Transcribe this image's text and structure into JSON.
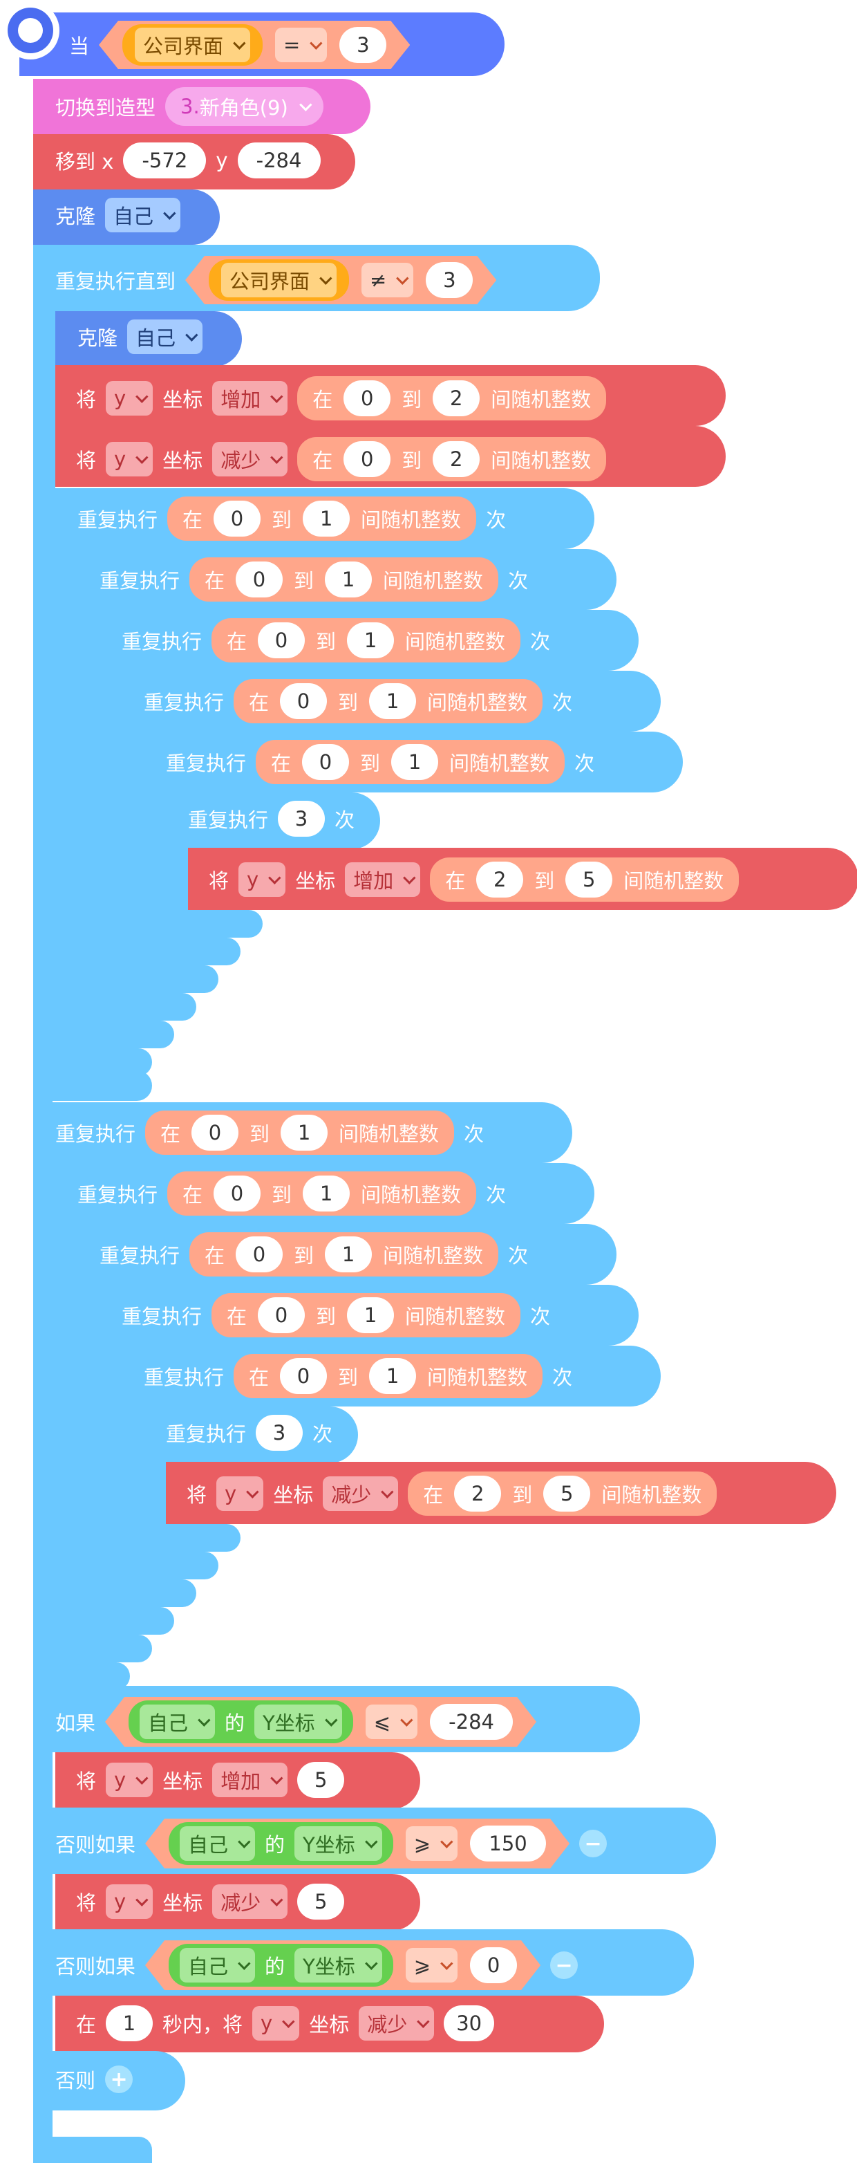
{
  "colors": {
    "hat": "#5c7cff",
    "blue": "#6ac8ff",
    "red": "#ea5d62",
    "salmon": "#ffa68a",
    "orange": "#ffab19",
    "purple": "#f074d8",
    "green": "#65d04f"
  },
  "hat": {
    "label": "当",
    "var": "公司界面",
    "op": "=",
    "value": "3"
  },
  "switch_costume": {
    "label": "切换到造型",
    "value_num": "3.",
    "value_text": "新角色(9)"
  },
  "goto": {
    "label": "移到 x",
    "x": "-572",
    "ylabel": "y",
    "y": "-284"
  },
  "clone1": {
    "label": "克隆",
    "target": "自己"
  },
  "repeat_until": {
    "label": "重复执行直到",
    "var": "公司界面",
    "op": "≠",
    "value": "3"
  },
  "clone2": {
    "label": "克隆",
    "target": "自己"
  },
  "change": {
    "label": "将",
    "axis": "y",
    "coord": "坐标",
    "increase": "增加",
    "decrease": "减少"
  },
  "rand": {
    "pre": "在",
    "to": "到",
    "post": "间随机整数"
  },
  "repeat": {
    "label": "重复执行",
    "times": "次",
    "three": "3"
  },
  "nums": {
    "zero": "0",
    "one": "1",
    "two": "2",
    "five": "5"
  },
  "if_block": {
    "if": "如果",
    "elif": "否则如果",
    "else": "否则",
    "self": "自己",
    "of": "的",
    "ycoord": "Y坐标",
    "le": "⩽",
    "ge": "⩾",
    "v1": "-284",
    "v2": "150",
    "v3": "0",
    "five": "5"
  },
  "glide": {
    "pre": "在",
    "secs": "1",
    "mid": "秒内，将",
    "axis": "y",
    "coord": "坐标",
    "dir": "减少",
    "value": "30"
  }
}
